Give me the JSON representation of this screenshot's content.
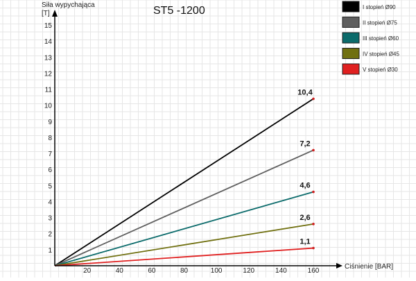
{
  "chart_data": {
    "type": "line",
    "title": "ST5 -1200",
    "xlabel": "Ciśnienie [BAR]",
    "ylabel_line1": "Siła wypychająca",
    "ylabel_line2": "[T]",
    "xlim": [
      0,
      160
    ],
    "ylim": [
      0,
      15
    ],
    "x_ticks": [
      20,
      40,
      60,
      80,
      100,
      120,
      140,
      160
    ],
    "y_ticks": [
      1,
      2,
      3,
      4,
      5,
      6,
      7,
      8,
      9,
      10,
      11,
      12,
      13,
      14,
      15
    ],
    "grid": true,
    "legend_position": "top-right",
    "series": [
      {
        "name": "I stopień Ø90",
        "color": "#000000",
        "x": [
          0,
          160
        ],
        "y": [
          0,
          10.4
        ],
        "end_label": "10,4"
      },
      {
        "name": "II stopień Ø75",
        "color": "#5f5f5f",
        "x": [
          0,
          160
        ],
        "y": [
          0,
          7.2
        ],
        "end_label": "7,2"
      },
      {
        "name": "III stopień Ø60",
        "color": "#0b6b6b",
        "x": [
          0,
          160
        ],
        "y": [
          0,
          4.6
        ],
        "end_label": "4,6"
      },
      {
        "name": "IV stopień Ø45",
        "color": "#707010",
        "x": [
          0,
          160
        ],
        "y": [
          0,
          2.6
        ],
        "end_label": "2,6"
      },
      {
        "name": "V stopień Ø30",
        "color": "#e02020",
        "x": [
          0,
          160
        ],
        "y": [
          0,
          1.1
        ],
        "end_label": "1,1"
      }
    ]
  }
}
